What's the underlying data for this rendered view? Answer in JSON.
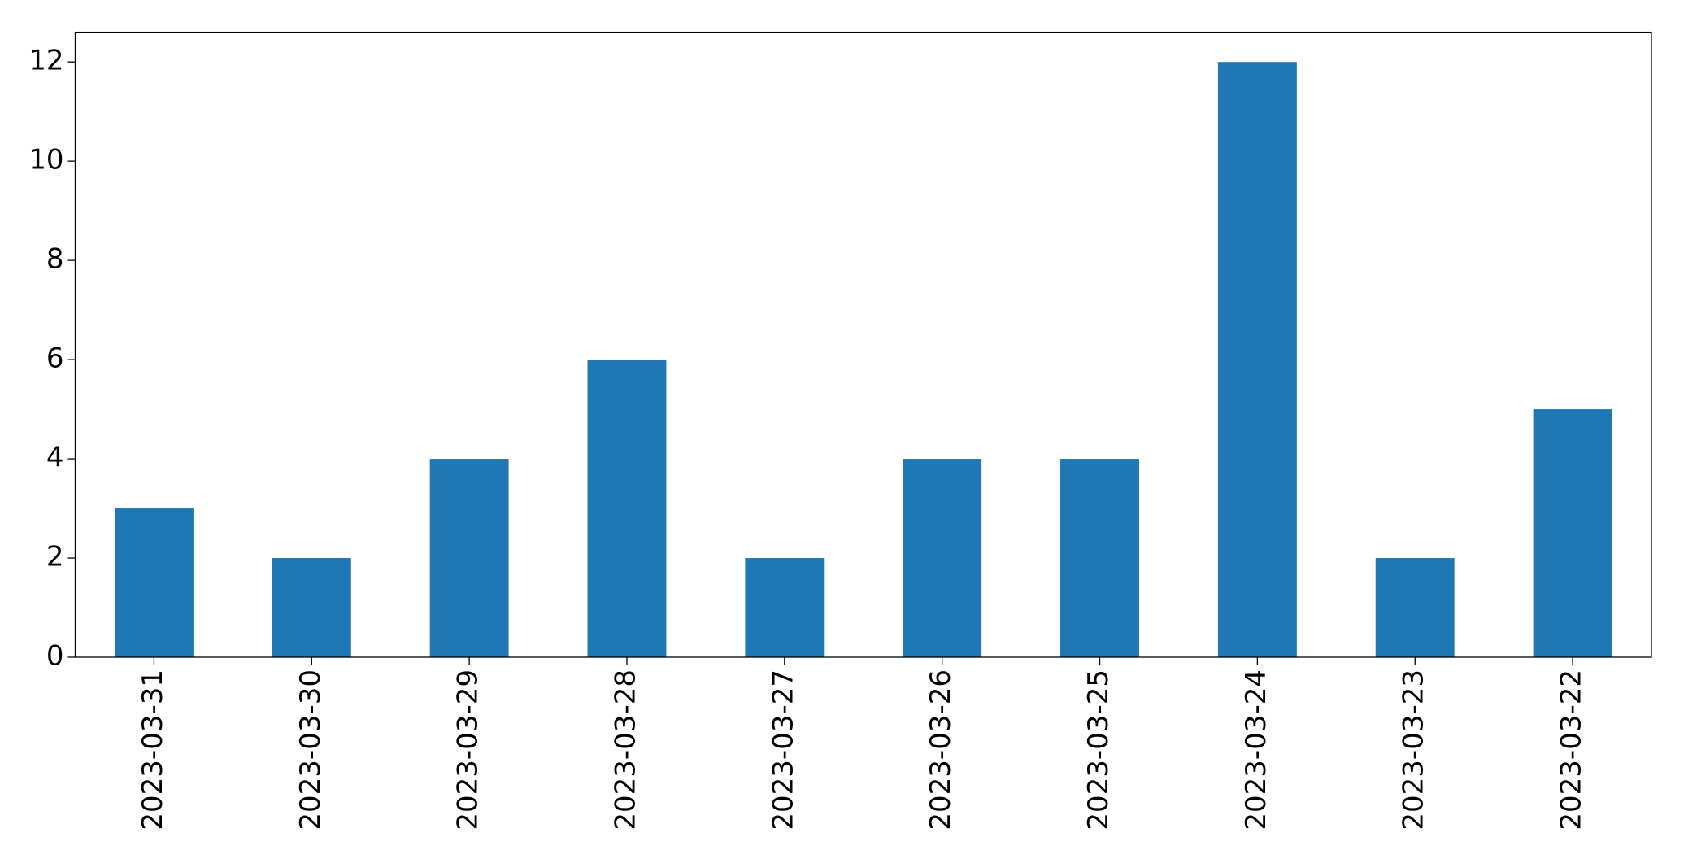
{
  "chart_data": {
    "type": "bar",
    "categories": [
      "2023-03-31",
      "2023-03-30",
      "2023-03-29",
      "2023-03-28",
      "2023-03-27",
      "2023-03-26",
      "2023-03-25",
      "2023-03-24",
      "2023-03-23",
      "2023-03-22"
    ],
    "values": [
      3,
      2,
      4,
      6,
      2,
      4,
      4,
      12,
      2,
      5
    ],
    "color": "#1f77b4",
    "ylim": [
      0,
      12.6
    ],
    "yticks": [
      0,
      2,
      4,
      6,
      8,
      10,
      12
    ],
    "grid": false
  }
}
